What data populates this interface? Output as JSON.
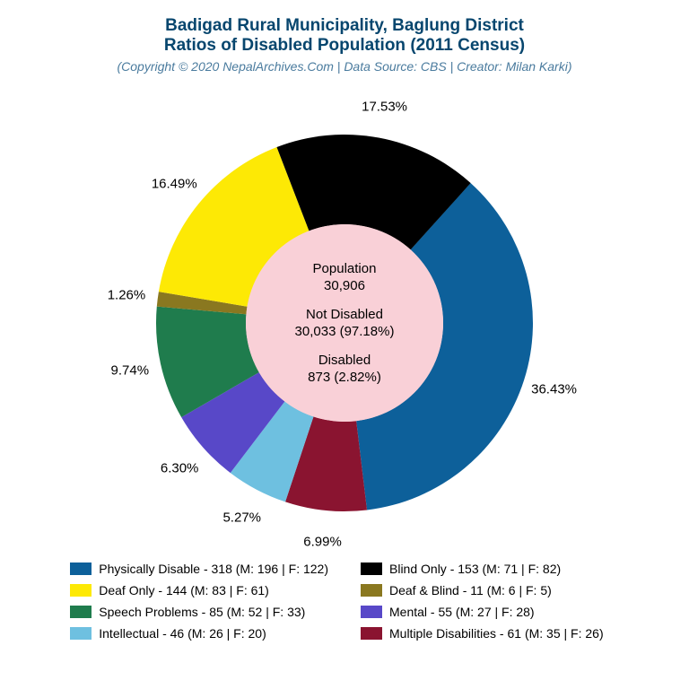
{
  "title": {
    "line1": "Badigad Rural Municipality, Baglung District",
    "line2": "Ratios of Disabled Population (2011 Census)",
    "color": "#07466e",
    "fontsize": 19
  },
  "subtitle": {
    "text": "(Copyright © 2020 NepalArchives.Com | Data Source: CBS | Creator: Milan Karki)",
    "color": "#4a7b9e",
    "fontsize": 14
  },
  "chart": {
    "type": "pie",
    "start_angle_deg": -48,
    "radius": 210,
    "inner_radius": 110,
    "center_bg": "#f9d0d7",
    "background": "#ffffff",
    "label_fontsize": 15,
    "slices": [
      {
        "label": "Physically Disable",
        "value": 318,
        "pct": 36.43,
        "color": "#0d609a",
        "legend": "Physically Disable - 318 (M: 196 | F: 122)"
      },
      {
        "label": "Multiple Disabilities",
        "value": 61,
        "pct": 6.99,
        "color": "#8a1430",
        "legend": "Multiple Disabilities - 61 (M: 35 | F: 26)"
      },
      {
        "label": "Intellectual",
        "value": 46,
        "pct": 5.27,
        "color": "#6ec0e0",
        "legend": "Intellectual - 46 (M: 26 | F: 20)"
      },
      {
        "label": "Mental",
        "value": 55,
        "pct": 6.3,
        "color": "#5848c8",
        "legend": "Mental - 55 (M: 27 | F: 28)"
      },
      {
        "label": "Speech Problems",
        "value": 85,
        "pct": 9.74,
        "color": "#1f7c4d",
        "legend": "Speech Problems - 85 (M: 52 | F: 33)"
      },
      {
        "label": "Deaf & Blind",
        "value": 11,
        "pct": 1.26,
        "color": "#8a7820",
        "legend": "Deaf & Blind - 11 (M: 6 | F: 5)"
      },
      {
        "label": "Deaf Only",
        "value": 144,
        "pct": 16.49,
        "color": "#fde905",
        "legend": "Deaf Only - 144 (M: 83 | F: 61)"
      },
      {
        "label": "Blind Only",
        "value": 153,
        "pct": 17.53,
        "color": "#000000",
        "legend": "Blind Only - 153 (M: 71 | F: 82)"
      }
    ],
    "center": {
      "population_label": "Population",
      "population_value": "30,906",
      "not_disabled_label": "Not Disabled",
      "not_disabled_value": "30,033 (97.18%)",
      "disabled_label": "Disabled",
      "disabled_value": "873 (2.82%)"
    }
  },
  "legend_order": [
    0,
    7,
    6,
    5,
    4,
    3,
    2,
    1
  ]
}
